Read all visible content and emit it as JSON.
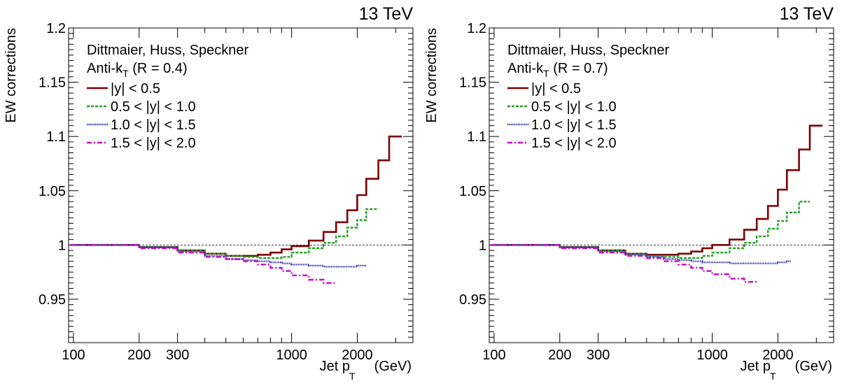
{
  "chart_data": [
    {
      "type": "line",
      "energy_label": "13 TeV",
      "ylabel": "EW corrections",
      "xlabel": {
        "main": "Jet p",
        "sub": "T",
        "unit": "(GeV)"
      },
      "x_scale": "log",
      "xlim": [
        95,
        3600
      ],
      "ylim": [
        0.91,
        1.2
      ],
      "x_ticks": [
        100,
        200,
        300,
        1000,
        2000
      ],
      "y_ticks": [
        0.95,
        1,
        1.05,
        1.1,
        1.15,
        1.2
      ],
      "reference_line": 1,
      "legend_header": [
        "Dittmaier, Huss, Speckner",
        {
          "main": "Anti-k",
          "sub": "T",
          "tail": " (R = 0.4)"
        }
      ],
      "series": [
        {
          "name": "|y| < 0.5",
          "color": "#7f0000",
          "style": "solid",
          "edges": [
            97,
            200,
            300,
            400,
            500,
            600,
            700,
            800,
            900,
            1000,
            1200,
            1400,
            1600,
            1800,
            2000,
            2200,
            2500,
            2800,
            3200
          ],
          "values": [
            1.0,
            0.998,
            0.995,
            0.992,
            0.99,
            0.99,
            0.991,
            0.993,
            0.996,
            0.999,
            1.004,
            1.012,
            1.021,
            1.032,
            1.046,
            1.061,
            1.078,
            1.1
          ]
        },
        {
          "name": "0.5 < |y| < 1.0",
          "color": "#22a022",
          "style": "dashed",
          "edges": [
            97,
            200,
            300,
            400,
            500,
            600,
            700,
            800,
            900,
            1000,
            1200,
            1400,
            1600,
            1800,
            2000,
            2200,
            2500
          ],
          "values": [
            1.0,
            0.998,
            0.995,
            0.992,
            0.99,
            0.989,
            0.988,
            0.988,
            0.989,
            0.993,
            0.997,
            1.002,
            1.008,
            1.016,
            1.023,
            1.033
          ]
        },
        {
          "name": "1.0 < |y| < 1.5",
          "color": "#1a1aa8",
          "style": "dotted",
          "edges": [
            97,
            200,
            300,
            400,
            500,
            600,
            700,
            800,
            900,
            1000,
            1200,
            1400,
            1600,
            1800,
            2000,
            2200
          ],
          "values": [
            1.0,
            0.998,
            0.994,
            0.99,
            0.987,
            0.986,
            0.985,
            0.984,
            0.983,
            0.982,
            0.981,
            0.98,
            0.98,
            0.98,
            0.981
          ]
        },
        {
          "name": "1.5 < |y| < 2.0",
          "color": "#cc00cc",
          "style": "dashdot",
          "edges": [
            97,
            200,
            300,
            400,
            500,
            600,
            700,
            800,
            900,
            1000,
            1200,
            1400,
            1600
          ],
          "values": [
            1.0,
            0.997,
            0.993,
            0.989,
            0.987,
            0.985,
            0.982,
            0.979,
            0.976,
            0.972,
            0.968,
            0.965
          ]
        }
      ]
    },
    {
      "type": "line",
      "energy_label": "13 TeV",
      "ylabel": "EW corrections",
      "xlabel": {
        "main": "Jet p",
        "sub": "T",
        "unit": "(GeV)"
      },
      "x_scale": "log",
      "xlim": [
        95,
        3600
      ],
      "ylim": [
        0.91,
        1.2
      ],
      "x_ticks": [
        100,
        200,
        300,
        1000,
        2000
      ],
      "y_ticks": [
        0.95,
        1,
        1.05,
        1.1,
        1.15,
        1.2
      ],
      "reference_line": 1,
      "legend_header": [
        "Dittmaier, Huss, Speckner",
        {
          "main": "Anti-k",
          "sub": "T",
          "tail": " (R = 0.7)"
        }
      ],
      "series": [
        {
          "name": "|y| < 0.5",
          "color": "#7f0000",
          "style": "solid",
          "edges": [
            97,
            200,
            300,
            400,
            500,
            600,
            700,
            800,
            900,
            1000,
            1200,
            1400,
            1600,
            1800,
            2000,
            2200,
            2500,
            2800,
            3200
          ],
          "values": [
            1.0,
            0.998,
            0.995,
            0.992,
            0.991,
            0.991,
            0.992,
            0.994,
            0.997,
            1.0,
            1.005,
            1.014,
            1.024,
            1.036,
            1.051,
            1.069,
            1.088,
            1.11
          ]
        },
        {
          "name": "0.5 < |y| < 1.0",
          "color": "#22a022",
          "style": "dashed",
          "edges": [
            97,
            200,
            300,
            400,
            500,
            600,
            700,
            800,
            900,
            1000,
            1200,
            1400,
            1600,
            1800,
            2000,
            2200,
            2500,
            2800
          ],
          "values": [
            1.0,
            0.998,
            0.995,
            0.992,
            0.99,
            0.989,
            0.988,
            0.988,
            0.99,
            0.993,
            0.997,
            1.002,
            1.008,
            1.015,
            1.022,
            1.03,
            1.04
          ]
        },
        {
          "name": "1.0 < |y| < 1.5",
          "color": "#1a1aa8",
          "style": "dotted",
          "edges": [
            97,
            200,
            300,
            400,
            500,
            600,
            700,
            800,
            900,
            1000,
            1200,
            1400,
            1600,
            1800,
            2000,
            2200,
            2300
          ],
          "values": [
            1.0,
            0.998,
            0.994,
            0.991,
            0.989,
            0.987,
            0.986,
            0.985,
            0.984,
            0.984,
            0.983,
            0.983,
            0.983,
            0.983,
            0.984,
            0.985
          ]
        },
        {
          "name": "1.5 < |y| < 2.0",
          "color": "#cc00cc",
          "style": "dashdot",
          "edges": [
            97,
            200,
            300,
            400,
            500,
            600,
            700,
            800,
            900,
            1000,
            1200,
            1400,
            1600
          ],
          "values": [
            1.0,
            0.997,
            0.993,
            0.99,
            0.988,
            0.985,
            0.982,
            0.979,
            0.976,
            0.973,
            0.969,
            0.966
          ]
        }
      ]
    }
  ]
}
